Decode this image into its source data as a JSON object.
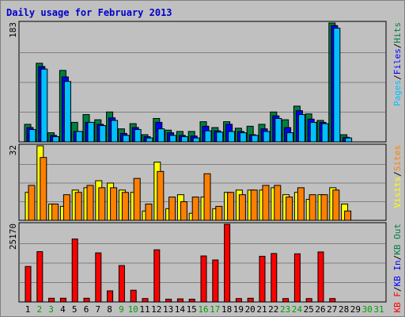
{
  "colors": {
    "background": "#c0c0c0",
    "title": "#0000cc",
    "hits": "#008040",
    "files": "#0000ff",
    "pages": "#00c0ff",
    "visits": "#ffff00",
    "sites": "#ff8000",
    "kbytes": "#ff0000",
    "kb_in": "#0000ff",
    "kb_out": "#008040",
    "weekday": "#000000",
    "weekend": "#00a000",
    "grid": "#808080",
    "separator": "#000000"
  },
  "chart_data": {
    "type": "bar",
    "title": "Daily usage for February 2013",
    "categories": [
      "1",
      "2",
      "3",
      "4",
      "5",
      "6",
      "7",
      "8",
      "9",
      "10",
      "11",
      "12",
      "13",
      "14",
      "15",
      "16",
      "17",
      "18",
      "19",
      "20",
      "21",
      "22",
      "23",
      "24",
      "25",
      "26",
      "27",
      "28",
      "29",
      "30",
      "31"
    ],
    "weekend_days": [
      "2",
      "3",
      "9",
      "10",
      "16",
      "17",
      "23",
      "24",
      "30",
      "31"
    ],
    "panels": [
      {
        "name": "requests",
        "scale_max": "183",
        "ylim": [
          0,
          183
        ],
        "label_parts": [
          {
            "text": "Pages",
            "color": "#00c0ff"
          },
          {
            "text": "/",
            "color": "#000000"
          },
          {
            "text": "Files",
            "color": "#0000ff"
          },
          {
            "text": "/",
            "color": "#000000"
          },
          {
            "text": "Hits",
            "color": "#008040"
          }
        ],
        "series": [
          {
            "name": "Hits",
            "color": "#008040",
            "values": [
              27,
              121,
              14,
              110,
              30,
              42,
              34,
              46,
              20,
              28,
              11,
              36,
              18,
              16,
              16,
              31,
              22,
              31,
              21,
              24,
              27,
              46,
              34,
              55,
              43,
              33,
              183,
              11,
              0,
              0,
              0
            ]
          },
          {
            "name": "Files",
            "color": "#0000ff",
            "values": [
              22,
              116,
              10,
              100,
              16,
              30,
              27,
              37,
              13,
              22,
              8,
              30,
              14,
              10,
              9,
              24,
              17,
              27,
              16,
              11,
              20,
              40,
              22,
              48,
              35,
              30,
              179,
              7,
              0,
              0,
              0
            ]
          },
          {
            "name": "Pages",
            "color": "#00c0ff",
            "values": [
              19,
              112,
              8,
              93,
              16,
              30,
              25,
              33,
              10,
              19,
              6,
              20,
              10,
              8,
              6,
              17,
              15,
              16,
              14,
              10,
              16,
              36,
              14,
              42,
              30,
              28,
              175,
              6,
              0,
              0,
              0
            ]
          }
        ]
      },
      {
        "name": "visits",
        "scale_max": "32",
        "ylim": [
          0,
          32
        ],
        "label_parts": [
          {
            "text": "Visits",
            "color": "#ffff00"
          },
          {
            "text": "/",
            "color": "#000000"
          },
          {
            "text": "Sites",
            "color": "#ff8000"
          }
        ],
        "series": [
          {
            "name": "Visits",
            "color": "#ffff00",
            "values": [
              12,
              32,
              7,
              6,
              13,
              14,
              17,
              16,
              13,
              12,
              4,
              25,
              5,
              11,
              3,
              10,
              5,
              12,
              13,
              13,
              13,
              14,
              11,
              12,
              9,
              11,
              14,
              7,
              0,
              0,
              0
            ]
          },
          {
            "name": "Sites",
            "color": "#ff8000",
            "values": [
              15,
              27,
              7,
              11,
              12,
              15,
              14,
              14,
              12,
              18,
              7,
              21,
              10,
              8,
              10,
              20,
              6,
              12,
              11,
              13,
              15,
              15,
              10,
              14,
              11,
              11,
              13,
              4,
              0,
              0,
              0
            ]
          }
        ]
      },
      {
        "name": "kbytes",
        "scale_max": "25170",
        "ylim": [
          0,
          25170
        ],
        "label_parts": [
          {
            "text": "KB F",
            "color": "#ff0000"
          },
          {
            "text": "/",
            "color": "#000000"
          },
          {
            "text": "KB In",
            "color": "#0000ff"
          },
          {
            "text": "/",
            "color": "#000000"
          },
          {
            "text": "KB Out",
            "color": "#008040"
          }
        ],
        "series": [
          {
            "name": "KB F",
            "color": "#ff0000",
            "values": [
              11500,
              16300,
              1200,
              1200,
              20400,
              1200,
              15900,
              3600,
              11800,
              3800,
              1100,
              16900,
              900,
              1000,
              900,
              14900,
              13600,
              25170,
              1100,
              1200,
              14800,
              15700,
              1100,
              15600,
              1100,
              16200,
              1100,
              0,
              0,
              0,
              0
            ]
          }
        ]
      }
    ]
  }
}
